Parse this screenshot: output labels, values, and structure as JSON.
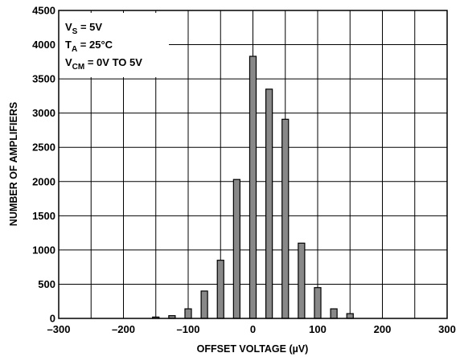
{
  "chart_data": {
    "type": "bar",
    "xlabel": "OFFSET VOLTAGE (µV)",
    "ylabel": "NUMBER OF AMPLIFIERS",
    "xlim": [
      -300,
      300
    ],
    "ylim": [
      0,
      4500
    ],
    "grid": true,
    "x_ticks": [
      -300,
      -200,
      -100,
      0,
      100,
      200,
      300
    ],
    "x_tick_labels": [
      "–300",
      "–200",
      "–100",
      "0",
      "100",
      "200",
      "300"
    ],
    "y_ticks": [
      0,
      500,
      1000,
      1500,
      2000,
      2500,
      3000,
      3500,
      4000,
      4500
    ],
    "y_tick_labels": [
      "0",
      "500",
      "1000",
      "1500",
      "2000",
      "2500",
      "3000",
      "3500",
      "4000",
      "4500"
    ],
    "bin_width": 25,
    "x": [
      -150,
      -125,
      -100,
      -75,
      -50,
      -25,
      0,
      25,
      50,
      75,
      100,
      125,
      150
    ],
    "values": [
      20,
      40,
      140,
      400,
      850,
      2030,
      3830,
      3350,
      2910,
      1100,
      450,
      140,
      70
    ],
    "bar_color": "#888888",
    "conditions": [
      {
        "main": "V",
        "sub": "S",
        "rest": " = 5V"
      },
      {
        "main": "T",
        "sub": "A",
        "rest": " = 25°C"
      },
      {
        "main": "V",
        "sub": "CM",
        "rest": " = 0V TO 5V"
      }
    ]
  }
}
